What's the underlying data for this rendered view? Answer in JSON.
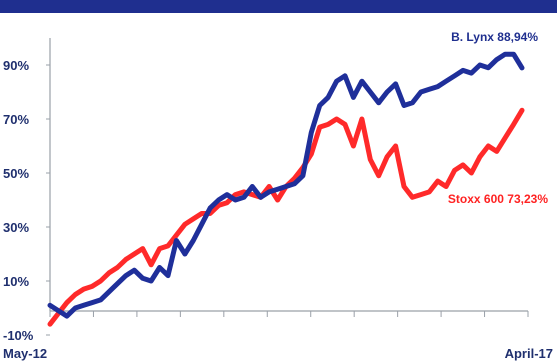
{
  "colors": {
    "header_bar": "#1f2f8f",
    "blue_series": "#1f2f9a",
    "red_series": "#ff2a2a",
    "axis": "#9aa0a8",
    "tick_text": "#1f2f6e"
  },
  "chart_data": {
    "type": "line",
    "title": "",
    "xlabel": "",
    "ylabel": "",
    "x_range_labels": [
      "May-12",
      "April-17"
    ],
    "y_ticks": [
      "90%",
      "70%",
      "50%",
      "30%",
      "10%",
      "-10%"
    ],
    "y_tick_values": [
      90,
      70,
      50,
      30,
      10,
      -10
    ],
    "ylim": [
      -10,
      100
    ],
    "grid": false,
    "series": [
      {
        "name": "B. Lynx",
        "end_label": "B. Lynx 88,94%",
        "color": "#1f2f9a",
        "values": [
          1,
          -1,
          -3,
          0,
          1,
          2,
          3,
          6,
          9,
          12,
          14,
          11,
          10,
          15,
          12,
          25,
          20,
          25,
          31,
          37,
          40,
          42,
          40,
          41,
          45,
          41,
          43,
          44,
          45,
          46,
          49,
          65,
          75,
          78,
          84,
          86,
          78,
          84,
          80,
          76,
          80,
          83,
          75,
          76,
          80,
          81,
          82,
          84,
          86,
          88,
          87,
          90,
          89,
          92,
          94,
          94,
          88.94
        ]
      },
      {
        "name": "Stoxx 600",
        "end_label": "Stoxx 600 73,23%",
        "color": "#ff2a2a",
        "values": [
          -6,
          -2,
          2,
          5,
          7,
          8,
          10,
          13,
          15,
          18,
          20,
          22,
          16,
          22,
          23,
          27,
          31,
          33,
          35,
          35,
          38,
          39,
          42,
          43,
          42,
          41,
          45,
          40,
          45,
          48,
          52,
          57,
          67,
          68,
          70,
          68,
          60,
          70,
          55,
          49,
          56,
          60,
          45,
          41,
          42,
          43,
          47,
          45,
          51,
          53,
          50,
          56,
          60,
          58,
          63,
          68,
          73.23
        ]
      }
    ]
  }
}
